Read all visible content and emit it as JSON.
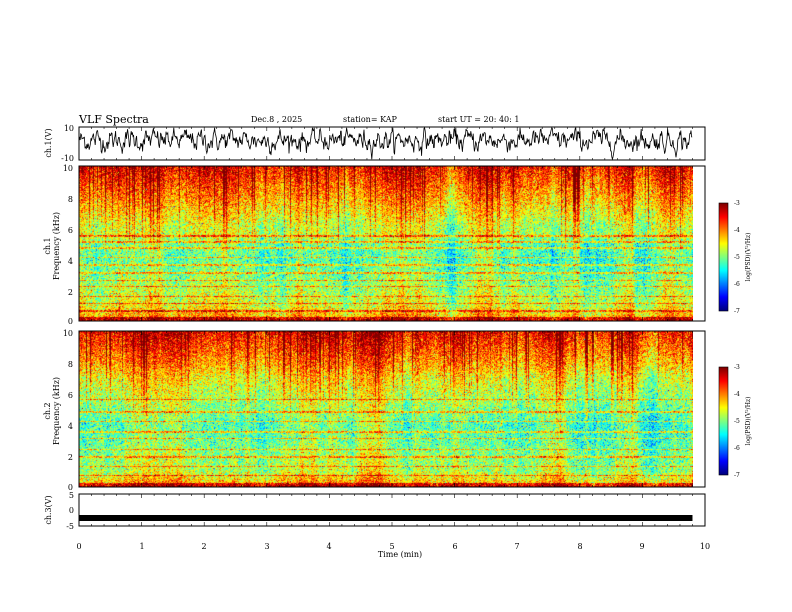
{
  "header": {
    "title": "VLF Spectra",
    "date": "Dec.8  , 2025",
    "station": "station= KAP",
    "start_ut": "start  UT  =   20: 40: 1"
  },
  "colors": {
    "trace": "#000000",
    "background": "#ffffff"
  },
  "chart_data": [
    {
      "type": "line",
      "panel": "ch.1 waveform",
      "ylabel": "ch.1(V)",
      "ylim": [
        -10,
        10
      ],
      "yticks": [
        "10",
        "-10"
      ],
      "xlim": [
        0,
        10
      ],
      "series": [
        {
          "name": "ch.1",
          "description_x_range": [
            0,
            9.8
          ],
          "approx_mean": 2,
          "approx_noise_amplitude": 6
        }
      ]
    },
    {
      "type": "heatmap",
      "panel": "ch.1 spectrogram",
      "ylabel": "ch.1\nFrequency (kHz)",
      "ylabel_line1": "ch.1",
      "ylabel_line2": "Frequency  (kHz)",
      "ylim": [
        0,
        10
      ],
      "yticks": [
        "0",
        "2",
        "4",
        "6",
        "8",
        "10"
      ],
      "xlim": [
        0,
        9.8
      ],
      "colorbar": {
        "label": "log(PSD)(V²/Hz)",
        "range": [
          -7,
          -3
        ],
        "ticks": [
          "-3",
          "-4",
          "-5",
          "-6",
          "-7"
        ]
      },
      "horizontal_lines_khz": [
        0.6,
        1.1,
        1.55,
        2.2,
        2.6,
        3.1,
        3.6,
        4.1,
        4.7,
        5.1,
        5.5
      ],
      "level_profile": [
        [
          0,
          -4.0
        ],
        [
          0.5,
          -4.3
        ],
        [
          1.0,
          -4.6
        ],
        [
          2.0,
          -4.8
        ],
        [
          3.0,
          -5.0
        ],
        [
          4.0,
          -5.2
        ],
        [
          5.0,
          -5.1
        ],
        [
          5.5,
          -4.7
        ],
        [
          6.0,
          -4.8
        ],
        [
          7.0,
          -4.5
        ],
        [
          8.0,
          -4.2
        ],
        [
          9.0,
          -3.9
        ],
        [
          10.0,
          -3.6
        ]
      ]
    },
    {
      "type": "heatmap",
      "panel": "ch.2 spectrogram",
      "ylabel_line1": "ch.2",
      "ylabel_line2": "Frequency  (kHz)",
      "ylim": [
        0,
        10
      ],
      "yticks": [
        "0",
        "2",
        "4",
        "6",
        "8",
        "10"
      ],
      "xlim": [
        0,
        9.8
      ],
      "colorbar": {
        "label": "log(PSD)(V²/Hz)",
        "range": [
          -7,
          -3
        ],
        "ticks": [
          "-3",
          "-4",
          "-5",
          "-6",
          "-7"
        ]
      },
      "horizontal_lines_khz": [
        0.7,
        1.3,
        1.9,
        2.4,
        3.1,
        3.5,
        4.2,
        4.8,
        5.6
      ],
      "level_profile": [
        [
          0,
          -4.1
        ],
        [
          0.5,
          -4.4
        ],
        [
          1.0,
          -4.8
        ],
        [
          2.0,
          -4.9
        ],
        [
          3.0,
          -5.1
        ],
        [
          4.0,
          -5.2
        ],
        [
          5.0,
          -5.0
        ],
        [
          6.0,
          -4.8
        ],
        [
          7.0,
          -4.6
        ],
        [
          8.0,
          -4.2
        ],
        [
          9.0,
          -3.9
        ],
        [
          10.0,
          -3.6
        ]
      ]
    },
    {
      "type": "line",
      "panel": "ch.3 waveform",
      "ylabel": "ch.3(V)",
      "ylim": [
        -5,
        5
      ],
      "yticks": [
        "5",
        "0",
        "-5"
      ],
      "xlim": [
        0,
        10
      ],
      "series": [
        {
          "name": "ch.3",
          "description_x_range": [
            0,
            9.8
          ],
          "approx_value": -2.5
        }
      ]
    }
  ],
  "xaxis": {
    "label": "Time  (min)",
    "ticks": [
      "0",
      "1",
      "2",
      "3",
      "4",
      "5",
      "6",
      "7",
      "8",
      "9",
      "10"
    ],
    "range": [
      0,
      10
    ]
  }
}
